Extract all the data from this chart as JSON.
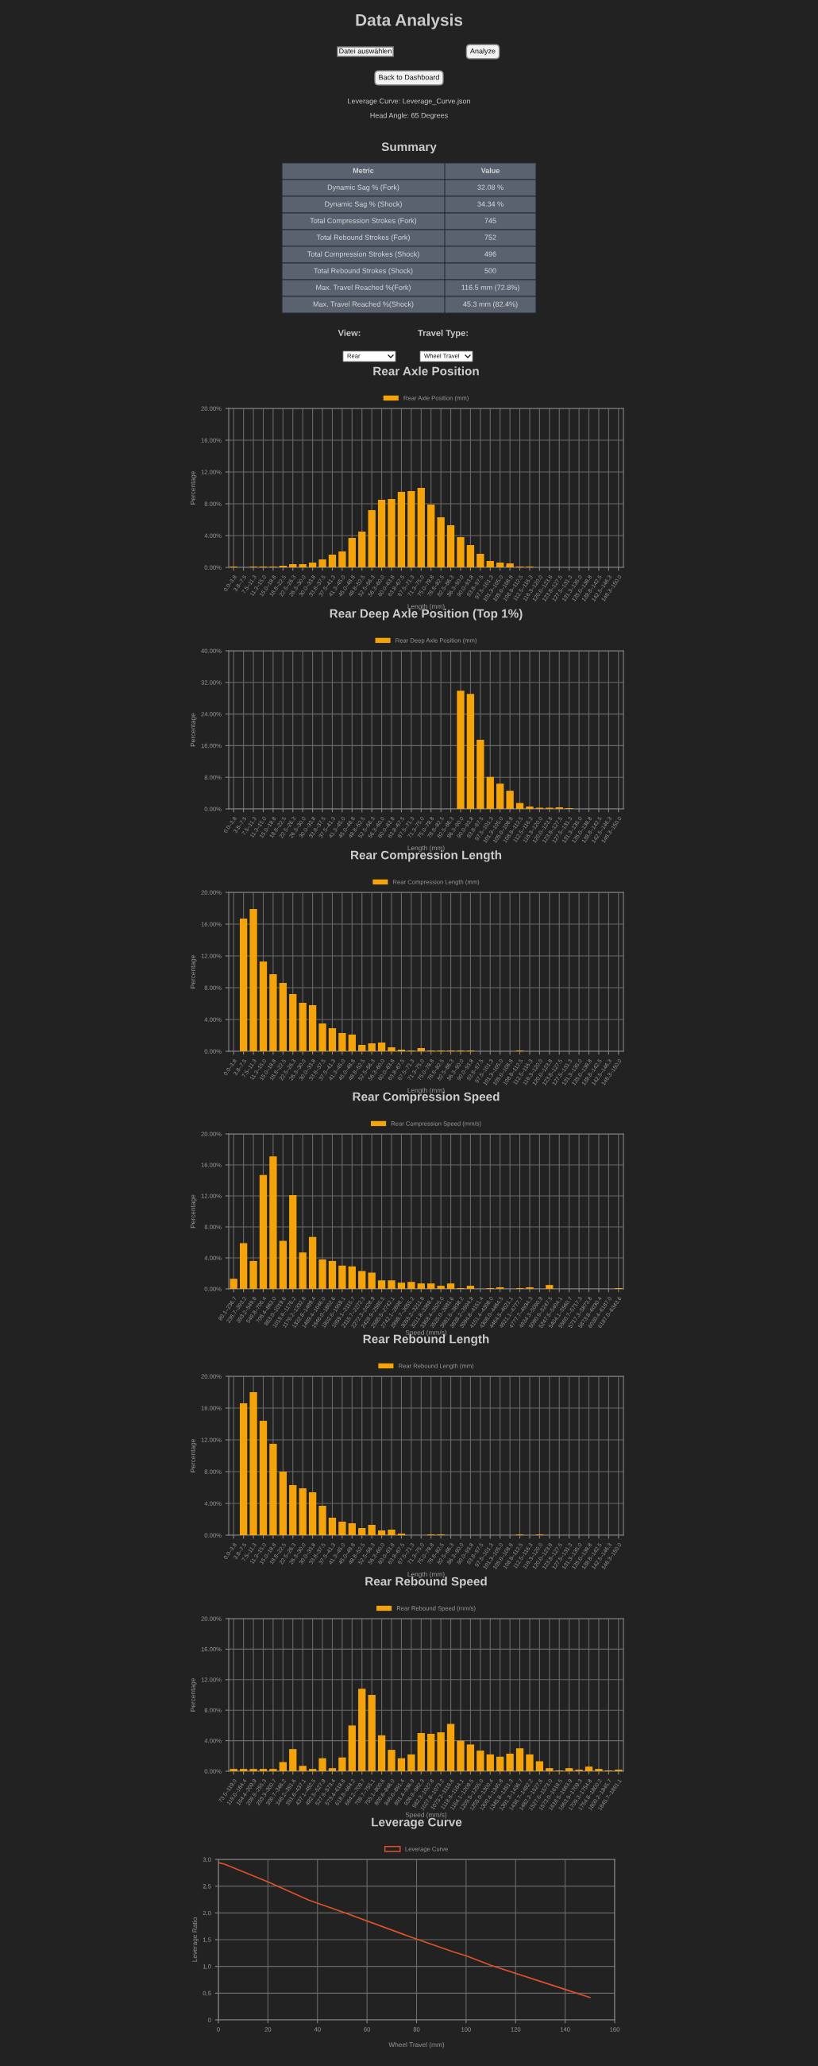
{
  "chart_data": [
    {
      "type": "other",
      "title": "Data Analysis",
      "annotations": [
        "Datei auswählen",
        "Analyze",
        "Back to Dashboard",
        "Leverage Curve: Leverage_Curve.json",
        "Head Angle: 65 Degrees"
      ]
    },
    {
      "type": "other",
      "title": "Summary",
      "annotations": [
        "Metric",
        "Value",
        "Dynamic Sag % (Fork)",
        "32.08 %",
        "Dynamic Sag % (Shock)",
        "34.34 %",
        "Total Compression Strokes (Fork)",
        "745",
        "Total Rebound Strokes (Fork)",
        "752",
        "Total Compression Strokes (Shock)",
        "496",
        "Total Rebound Strokes (Shock)",
        "500",
        "Max. Travel Reached %(Fork)",
        "116.5 mm (72.8%)",
        "Max. Travel Reached %(Shock)",
        "45.3 mm (82.4%)"
      ]
    },
    {
      "type": "other",
      "annotations": [
        "View:",
        "Travel Type:",
        "Rear",
        "Wheel Travel"
      ]
    },
    {
      "type": "bar",
      "title": "Rear Axle Position",
      "xlabel": "Length (mm)",
      "ylabel": "Percentage",
      "legend": "top",
      "grid": true,
      "categories": [
        "0.0–3.8",
        "3.8–7.5",
        "7.5–11.3",
        "11.3–15.0",
        "15.0–18.8",
        "18.8–22.5",
        "22.5–26.3",
        "26.3–30.0",
        "30.0–33.8",
        "33.8–37.5",
        "37.5–41.3",
        "41.3–45.0",
        "45.0–48.8",
        "48.8–52.5",
        "52.5–56.3",
        "56.3–60.0",
        "60.0–63.8",
        "63.8–67.5",
        "67.5–71.3",
        "71.3–75.0",
        "75.0–78.8",
        "78.8–82.5",
        "82.5–86.3",
        "86.3–90.0",
        "90.0–93.8",
        "93.8–97.5",
        "97.5–101.3",
        "101.3–105.0",
        "105.0–108.8",
        "108.8–112.5",
        "112.5–116.3",
        "116.3–120.0",
        "120.0–123.8",
        "123.8–127.5",
        "127.5–131.3",
        "131.3–135.0",
        "135.0–138.8",
        "138.8–142.5",
        "142.5–146.3",
        "146.3–150.0"
      ],
      "ylim": [
        0,
        20
      ],
      "yticks": [
        {
          "value": 0,
          "label": "0.00%"
        },
        {
          "value": 4,
          "label": "4.00%"
        },
        {
          "value": 8,
          "label": "8.00%"
        },
        {
          "value": 12,
          "label": "12.00%"
        },
        {
          "value": 16,
          "label": "16.00%"
        },
        {
          "value": 20,
          "label": "20.00%"
        }
      ],
      "series": [
        {
          "name": "Rear Axle Position (mm)",
          "color": "#f5a30b",
          "values": [
            0.1,
            0,
            0.1,
            0.1,
            0.1,
            0.2,
            0.4,
            0.4,
            0.6,
            1.0,
            1.6,
            2.0,
            3.7,
            4.5,
            7.2,
            8.5,
            8.6,
            9.5,
            9.6,
            10.0,
            7.9,
            6.3,
            5.3,
            3.8,
            2.8,
            1.7,
            0.8,
            0.6,
            0.5,
            0.1,
            0.1,
            0,
            0,
            0,
            0,
            0,
            0,
            0,
            0,
            0
          ]
        }
      ]
    },
    {
      "type": "bar",
      "title": "Rear Deep Axle Position (Top 1%)",
      "xlabel": "Length (mm)",
      "ylabel": "Percentage",
      "legend": "top",
      "grid": true,
      "categories": [
        "0.0–3.8",
        "3.8–7.5",
        "7.5–11.3",
        "11.3–15.0",
        "15.0–18.8",
        "18.8–22.5",
        "22.5–26.3",
        "26.3–30.0",
        "30.0–33.8",
        "33.8–37.5",
        "37.5–41.3",
        "41.3–45.0",
        "45.0–48.8",
        "48.8–52.5",
        "52.5–56.3",
        "56.3–60.0",
        "60.0–63.8",
        "63.8–67.5",
        "67.5–71.3",
        "71.3–75.0",
        "75.0–78.8",
        "78.8–82.5",
        "82.5–86.3",
        "86.3–90.0",
        "90.0–93.8",
        "93.8–97.5",
        "97.5–101.3",
        "101.3–105.0",
        "105.0–108.8",
        "108.8–112.5",
        "112.5–116.3",
        "116.3–120.0",
        "120.0–123.8",
        "123.8–127.5",
        "127.5–131.3",
        "131.3–135.0",
        "135.0–138.8",
        "138.8–142.5",
        "142.5–146.3",
        "146.3–150.0"
      ],
      "ylim": [
        0,
        40
      ],
      "yticks": [
        {
          "value": 0,
          "label": "0.00%"
        },
        {
          "value": 8,
          "label": "8.00%"
        },
        {
          "value": 16,
          "label": "16.00%"
        },
        {
          "value": 24,
          "label": "24.00%"
        },
        {
          "value": 32,
          "label": "32.00%"
        },
        {
          "value": 40,
          "label": "40.00%"
        }
      ],
      "series": [
        {
          "name": "Rear Deep Axle Position (mm)",
          "color": "#f5a30b",
          "values": [
            0,
            0,
            0,
            0,
            0,
            0,
            0,
            0,
            0,
            0,
            0,
            0,
            0,
            0,
            0,
            0,
            0,
            0,
            0,
            0,
            0,
            0,
            0,
            29.9,
            29.1,
            17.5,
            8.1,
            6.4,
            4.6,
            1.5,
            0.6,
            0.3,
            0.3,
            0.4,
            0.2,
            0,
            0,
            0,
            0,
            0
          ]
        }
      ]
    },
    {
      "type": "bar",
      "title": "Rear Compression Length",
      "xlabel": "Length (mm)",
      "ylabel": "Percentage",
      "legend": "top",
      "grid": true,
      "categories": [
        "0.0–3.8",
        "3.8–7.5",
        "7.5–11.3",
        "11.3–15.0",
        "15.0–18.8",
        "18.8–22.5",
        "22.5–26.3",
        "26.3–30.0",
        "30.0–33.8",
        "33.8–37.5",
        "37.5–41.3",
        "41.3–45.0",
        "45.0–48.8",
        "48.8–52.5",
        "52.5–56.3",
        "56.3–60.0",
        "60.0–63.8",
        "63.8–67.5",
        "67.5–71.3",
        "71.3–75.0",
        "75.0–78.8",
        "78.8–82.5",
        "82.5–86.3",
        "86.3–90.0",
        "90.0–93.8",
        "93.8–97.5",
        "97.5–101.3",
        "101.3–105.0",
        "105.0–108.8",
        "108.8–112.5",
        "112.5–116.3",
        "116.3–120.0",
        "120.0–123.8",
        "123.8–127.5",
        "127.5–131.3",
        "131.3–135.0",
        "135.0–138.8",
        "138.8–142.5",
        "142.5–146.3",
        "146.3–150.0"
      ],
      "ylim": [
        0,
        20
      ],
      "yticks": [
        {
          "value": 0,
          "label": "0.00%"
        },
        {
          "value": 4,
          "label": "4.00%"
        },
        {
          "value": 8,
          "label": "8.00%"
        },
        {
          "value": 12,
          "label": "12.00%"
        },
        {
          "value": 16,
          "label": "16.00%"
        },
        {
          "value": 20,
          "label": "20.00%"
        }
      ],
      "series": [
        {
          "name": "Rear Compression Length (mm)",
          "color": "#f5a30b",
          "values": [
            0,
            16.7,
            17.9,
            11.3,
            9.7,
            8.6,
            7.2,
            6.1,
            5.8,
            3.5,
            2.9,
            2.3,
            2.1,
            0.8,
            1.0,
            1.1,
            0.5,
            0.2,
            0.1,
            0.4,
            0.1,
            0.1,
            0.1,
            0.1,
            0.1,
            0,
            0,
            0,
            0,
            0.1,
            0,
            0,
            0,
            0,
            0,
            0,
            0,
            0,
            0,
            0
          ]
        }
      ]
    },
    {
      "type": "bar",
      "title": "Rear Compression Speed",
      "xlabel": "Speed (mm/s)",
      "ylabel": "Percentage",
      "legend": "top",
      "grid": true,
      "categories": [
        "80.1–236.7",
        "236.7–393.2",
        "393.2–549.8",
        "549.8–706.4",
        "706.4–863.0",
        "863.0–1019.6",
        "1019.6–1176.2",
        "1176.2–1332.8",
        "1332.8–1489.4",
        "1489.4–1646.0",
        "1646.0–1802.6",
        "1802.6–1959.1",
        "1959.1–2115.7",
        "2115.7–2272.3",
        "2272.3–2428.9",
        "2428.9–2585.5",
        "2585.5–2742.1",
        "2742.1–2898.7",
        "2898.7–3055.2",
        "3055.2–3211.8",
        "3211.8–3368.4",
        "3368.4–3525.0",
        "3525.0–3681.6",
        "3681.6–3838.2",
        "3838.2–3994.8",
        "3994.8–4151.4",
        "4151.4–4308.0",
        "4308.0–4464.5",
        "4464.5–4621.1",
        "4621.1–4777.7",
        "4777.7–4934.3",
        "4934.3–5090.9",
        "5090.9–5247.5",
        "5247.5–5404.1",
        "5404.1–5560.7",
        "5560.7–5717.3",
        "5717.3–5873.8",
        "5873.8–6030.4",
        "6030.4–6187.0",
        "6187.0–6343.6"
      ],
      "ylim": [
        0,
        20
      ],
      "yticks": [
        {
          "value": 0,
          "label": "0.00%"
        },
        {
          "value": 4,
          "label": "4.00%"
        },
        {
          "value": 8,
          "label": "8.00%"
        },
        {
          "value": 12,
          "label": "12.00%"
        },
        {
          "value": 16,
          "label": "16.00%"
        },
        {
          "value": 20,
          "label": "20.00%"
        }
      ],
      "series": [
        {
          "name": "Rear Compression Speed (mm/s)",
          "color": "#f5a30b",
          "values": [
            1.3,
            5.9,
            3.6,
            14.7,
            17.1,
            6.2,
            12.1,
            4.7,
            6.7,
            3.8,
            3.6,
            3.0,
            2.9,
            2.3,
            2.1,
            1.1,
            1.1,
            0.8,
            0.9,
            0.7,
            0.7,
            0.4,
            0.7,
            0.1,
            0.4,
            0,
            0.1,
            0.2,
            0,
            0.1,
            0.2,
            0,
            0.5,
            0,
            0,
            0,
            0,
            0,
            0,
            0.1
          ]
        }
      ]
    },
    {
      "type": "bar",
      "title": "Rear Rebound Length",
      "xlabel": "Length (mm)",
      "ylabel": "Percentage",
      "legend": "top",
      "grid": true,
      "categories": [
        "0.0–3.8",
        "3.8–7.5",
        "7.5–11.3",
        "11.3–15.0",
        "15.0–18.8",
        "18.8–22.5",
        "22.5–26.3",
        "26.3–30.0",
        "30.0–33.8",
        "33.8–37.5",
        "37.5–41.3",
        "41.3–45.0",
        "45.0–48.8",
        "48.8–52.5",
        "52.5–56.3",
        "56.3–60.0",
        "60.0–63.8",
        "63.8–67.5",
        "67.5–71.3",
        "71.3–75.0",
        "75.0–78.8",
        "78.8–82.5",
        "82.5–86.3",
        "86.3–90.0",
        "90.0–93.8",
        "93.8–97.5",
        "97.5–101.3",
        "101.3–105.0",
        "105.0–108.8",
        "108.8–112.5",
        "112.5–116.3",
        "116.3–120.0",
        "120.0–123.8",
        "123.8–127.5",
        "127.5–131.3",
        "131.3–135.0",
        "135.0–138.8",
        "138.8–142.5",
        "142.5–146.3",
        "146.3–150.0"
      ],
      "ylim": [
        0,
        20
      ],
      "yticks": [
        {
          "value": 0,
          "label": "0.00%"
        },
        {
          "value": 4,
          "label": "4.00%"
        },
        {
          "value": 8,
          "label": "8.00%"
        },
        {
          "value": 12,
          "label": "12.00%"
        },
        {
          "value": 16,
          "label": "16.00%"
        },
        {
          "value": 20,
          "label": "20.00%"
        }
      ],
      "series": [
        {
          "name": "Rear Rebound Length (mm)",
          "color": "#f5a30b",
          "values": [
            0,
            16.6,
            18.0,
            14.4,
            11.5,
            8.0,
            6.3,
            5.9,
            5.4,
            3.7,
            2.2,
            1.7,
            1.5,
            0.9,
            1.3,
            0.6,
            0.7,
            0.2,
            0,
            0,
            0.1,
            0.1,
            0,
            0,
            0,
            0,
            0,
            0,
            0,
            0.1,
            0,
            0.1,
            0,
            0,
            0,
            0,
            0,
            0,
            0,
            0
          ]
        }
      ]
    },
    {
      "type": "bar",
      "title": "Rear Rebound Speed",
      "xlabel": "Speed (mm/s)",
      "ylabel": "Percentage",
      "legend": "top",
      "grid": true,
      "categories": [
        "73.5–119.0",
        "119.0–164.4",
        "164.4–209.9",
        "209.9–255.3",
        "255.3–300.7",
        "300.7–346.2",
        "346.2–391.6",
        "391.6–437.1",
        "437.1–482.5",
        "482.5–527.9",
        "527.9–573.4",
        "573.4–618.8",
        "618.8–664.2",
        "664.2–709.7",
        "709.7–755.1",
        "755.1–800.6",
        "800.6–846.0",
        "846.0–891.4",
        "891.4–936.9",
        "936.9–982.3",
        "982.3–1027.8",
        "1027.8–1073.2",
        "1073.2–1118.6",
        "1118.6–1164.1",
        "1164.1–1209.5",
        "1209.5–1255.0",
        "1255.0–1300.4",
        "1300.4–1345.8",
        "1345.8–1391.3",
        "1391.3–1436.7",
        "1436.7–1482.2",
        "1482.2–1527.6",
        "1527.6–1573.0",
        "1573.0–1618.5",
        "1618.5–1663.9",
        "1663.9–1709.3",
        "1709.3–1754.8",
        "1754.8–1800.2",
        "1800.2–1845.7",
        "1845.7–1891.1"
      ],
      "ylim": [
        0,
        20
      ],
      "yticks": [
        {
          "value": 0,
          "label": "0.00%"
        },
        {
          "value": 4,
          "label": "4.00%"
        },
        {
          "value": 8,
          "label": "8.00%"
        },
        {
          "value": 12,
          "label": "12.00%"
        },
        {
          "value": 16,
          "label": "16.00%"
        },
        {
          "value": 20,
          "label": "20.00%"
        }
      ],
      "series": [
        {
          "name": "Rear Rebound Speed (mm/s)",
          "color": "#f5a30b",
          "values": [
            0.3,
            0.3,
            0.3,
            0.3,
            0.3,
            1.2,
            2.9,
            0.7,
            0.3,
            1.7,
            0.4,
            1.8,
            6.0,
            10.8,
            10.0,
            4.7,
            2.8,
            1.7,
            2.2,
            5.0,
            4.9,
            5.1,
            6.2,
            4.0,
            3.5,
            2.7,
            2.2,
            1.9,
            2.3,
            3.0,
            2.2,
            1.3,
            0.4,
            0.1,
            0.4,
            0.2,
            0.6,
            0.3,
            0.1,
            0.2
          ]
        }
      ]
    },
    {
      "type": "line",
      "title": "Leverage Curve",
      "xlabel": "Wheel Travel (mm)",
      "ylabel": "Leverage Ratio",
      "legend": "top",
      "grid": true,
      "marker": "none",
      "line_style": "solid",
      "x": [
        0,
        2.5,
        20,
        36.5,
        50,
        80,
        95,
        100,
        110,
        140,
        150
      ],
      "xlim": [
        0,
        160
      ],
      "xticks": [
        0,
        20,
        40,
        60,
        80,
        100,
        120,
        140,
        160
      ],
      "ylim": [
        0,
        3
      ],
      "yticks": [
        0,
        {
          "value": 0.5,
          "label": "0,5"
        },
        {
          "value": 1,
          "label": "1,0"
        },
        {
          "value": 1.5,
          "label": "1,5"
        },
        {
          "value": 2,
          "label": "2,0"
        },
        {
          "value": 2.5,
          "label": "2,5"
        },
        {
          "value": 3,
          "label": "3,0"
        }
      ],
      "series": [
        {
          "name": "Leverage Curve",
          "color": "#e2522a",
          "values": [
            2.94,
            2.91,
            2.58,
            2.24,
            2.02,
            1.51,
            1.27,
            1.2,
            1.02,
            0.57,
            0.42
          ]
        }
      ]
    }
  ]
}
